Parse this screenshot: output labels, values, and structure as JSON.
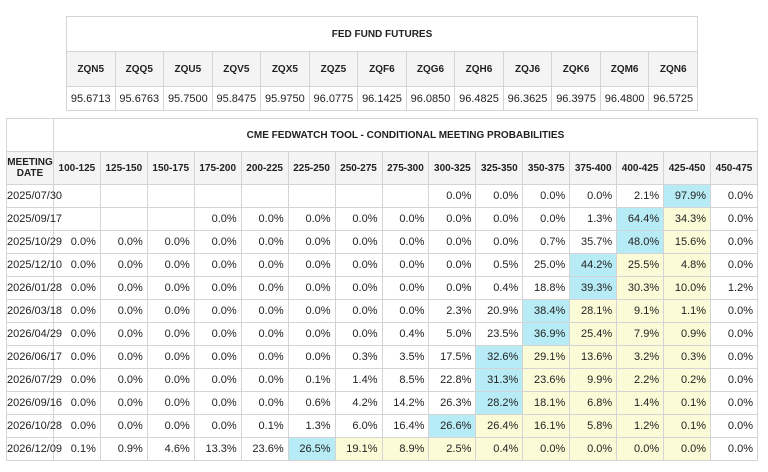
{
  "futures": {
    "title": "FED FUND FUTURES",
    "codes": [
      "ZQN5",
      "ZQQ5",
      "ZQU5",
      "ZQV5",
      "ZQX5",
      "ZQZ5",
      "ZQF6",
      "ZQG6",
      "ZQH6",
      "ZQJ6",
      "ZQK6",
      "ZQM6",
      "ZQN6"
    ],
    "prices": [
      "95.6713",
      "95.6763",
      "95.7500",
      "95.8475",
      "95.9750",
      "96.0775",
      "96.1425",
      "96.0850",
      "96.4825",
      "96.3625",
      "96.3975",
      "96.4800",
      "96.5725"
    ]
  },
  "probabilities": {
    "title": "CME FEDWATCH TOOL - CONDITIONAL MEETING PROBABILITIES",
    "date_header": "MEETING DATE",
    "columns": [
      "100-125",
      "125-150",
      "150-175",
      "175-200",
      "200-225",
      "225-250",
      "250-275",
      "275-300",
      "300-325",
      "325-350",
      "350-375",
      "375-400",
      "400-425",
      "425-450",
      "450-475"
    ],
    "colors": {
      "highlight": "#b7ebf5",
      "shade": "#fbfbd7"
    },
    "rows": [
      {
        "date": "2025/07/30",
        "values": [
          "",
          "",
          "",
          "",
          "",
          "",
          "",
          "",
          "0.0%",
          "0.0%",
          "0.0%",
          "0.0%",
          "2.1%",
          "97.9%",
          "0.0%"
        ],
        "hi": 13,
        "shade": []
      },
      {
        "date": "2025/09/17",
        "values": [
          "",
          "",
          "",
          "0.0%",
          "0.0%",
          "0.0%",
          "0.0%",
          "0.0%",
          "0.0%",
          "0.0%",
          "0.0%",
          "1.3%",
          "64.4%",
          "34.3%",
          "0.0%"
        ],
        "hi": 12,
        "shade": [
          13
        ]
      },
      {
        "date": "2025/10/29",
        "values": [
          "0.0%",
          "0.0%",
          "0.0%",
          "0.0%",
          "0.0%",
          "0.0%",
          "0.0%",
          "0.0%",
          "0.0%",
          "0.0%",
          "0.7%",
          "35.7%",
          "48.0%",
          "15.6%",
          "0.0%"
        ],
        "hi": 12,
        "shade": [
          13
        ]
      },
      {
        "date": "2025/12/10",
        "values": [
          "0.0%",
          "0.0%",
          "0.0%",
          "0.0%",
          "0.0%",
          "0.0%",
          "0.0%",
          "0.0%",
          "0.0%",
          "0.5%",
          "25.0%",
          "44.2%",
          "25.5%",
          "4.8%",
          "0.0%"
        ],
        "hi": 11,
        "shade": [
          12,
          13
        ]
      },
      {
        "date": "2026/01/28",
        "values": [
          "0.0%",
          "0.0%",
          "0.0%",
          "0.0%",
          "0.0%",
          "0.0%",
          "0.0%",
          "0.0%",
          "0.0%",
          "0.4%",
          "18.8%",
          "39.3%",
          "30.3%",
          "10.0%",
          "1.2%"
        ],
        "hi": 11,
        "shade": [
          12,
          13
        ]
      },
      {
        "date": "2026/03/18",
        "values": [
          "0.0%",
          "0.0%",
          "0.0%",
          "0.0%",
          "0.0%",
          "0.0%",
          "0.0%",
          "0.0%",
          "2.3%",
          "20.9%",
          "38.4%",
          "28.1%",
          "9.1%",
          "1.1%",
          "0.0%"
        ],
        "hi": 10,
        "shade": [
          11,
          12,
          13
        ]
      },
      {
        "date": "2026/04/29",
        "values": [
          "0.0%",
          "0.0%",
          "0.0%",
          "0.0%",
          "0.0%",
          "0.0%",
          "0.0%",
          "0.4%",
          "5.0%",
          "23.5%",
          "36.9%",
          "25.4%",
          "7.9%",
          "0.9%",
          "0.0%"
        ],
        "hi": 10,
        "shade": [
          11,
          12,
          13
        ]
      },
      {
        "date": "2026/06/17",
        "values": [
          "0.0%",
          "0.0%",
          "0.0%",
          "0.0%",
          "0.0%",
          "0.0%",
          "0.3%",
          "3.5%",
          "17.5%",
          "32.6%",
          "29.1%",
          "13.6%",
          "3.2%",
          "0.3%",
          "0.0%"
        ],
        "hi": 9,
        "shade": [
          10,
          11,
          12,
          13
        ]
      },
      {
        "date": "2026/07/29",
        "values": [
          "0.0%",
          "0.0%",
          "0.0%",
          "0.0%",
          "0.0%",
          "0.1%",
          "1.4%",
          "8.5%",
          "22.8%",
          "31.3%",
          "23.6%",
          "9.9%",
          "2.2%",
          "0.2%",
          "0.0%"
        ],
        "hi": 9,
        "shade": [
          10,
          11,
          12,
          13
        ]
      },
      {
        "date": "2026/09/16",
        "values": [
          "0.0%",
          "0.0%",
          "0.0%",
          "0.0%",
          "0.0%",
          "0.6%",
          "4.2%",
          "14.2%",
          "26.3%",
          "28.2%",
          "18.1%",
          "6.8%",
          "1.4%",
          "0.1%",
          "0.0%"
        ],
        "hi": 9,
        "shade": [
          10,
          11,
          12,
          13
        ]
      },
      {
        "date": "2026/10/28",
        "values": [
          "0.0%",
          "0.0%",
          "0.0%",
          "0.0%",
          "0.1%",
          "1.3%",
          "6.0%",
          "16.4%",
          "26.6%",
          "26.4%",
          "16.1%",
          "5.8%",
          "1.2%",
          "0.1%",
          "0.0%"
        ],
        "hi": 8,
        "shade": [
          9,
          10,
          11,
          12,
          13
        ]
      },
      {
        "date": "2026/12/09",
        "values": [
          "0.1%",
          "0.9%",
          "4.6%",
          "13.3%",
          "23.6%",
          "26.5%",
          "19.1%",
          "8.9%",
          "2.5%",
          "0.4%",
          "0.0%",
          "0.0%",
          "0.0%",
          "0.0%",
          "0.0%"
        ],
        "hi": 5,
        "shade": [
          6,
          7,
          8,
          9,
          10,
          11,
          12,
          13
        ]
      }
    ]
  }
}
